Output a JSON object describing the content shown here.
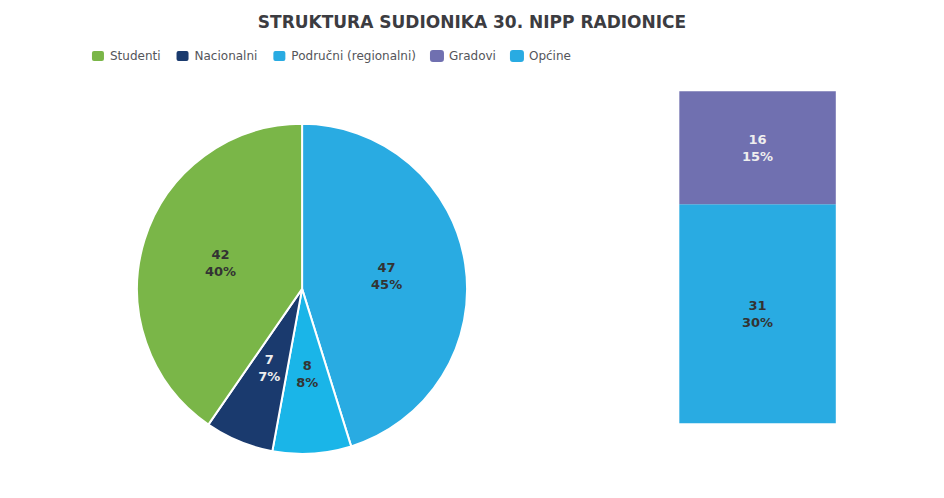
{
  "chart_data": [
    {
      "type": "pie",
      "title": "STRUKTURA SUDIONIKA 30. NIPP RADIONICE",
      "categories": [
        "Područni (regionalni)",
        null,
        "Nacionalni",
        "Studenti"
      ],
      "values": [
        47,
        8,
        7,
        42
      ],
      "value_labels": [
        "47\n45%",
        "8\n8%",
        "7\n7%",
        "42\n40%"
      ],
      "colors": [
        "#29abe2",
        "#1ab5e8",
        "#1a3a6e",
        "#7ab648"
      ],
      "data_labels": true,
      "legend": "upper left"
    },
    {
      "type": "bar",
      "stacked": true,
      "categories": [
        null
      ],
      "series": [
        {
          "name": "Općine",
          "color": "#29abe2",
          "values": [
            31
          ],
          "value_labels": [
            "31\n30%"
          ]
        },
        {
          "name": "Gradovi",
          "color": "#7070b0",
          "values": [
            16
          ],
          "value_labels": [
            "16\n15%"
          ]
        }
      ],
      "ylim": [
        0,
        47.94
      ],
      "tick_labels": false,
      "grid": false,
      "data_labels": true
    }
  ]
}
